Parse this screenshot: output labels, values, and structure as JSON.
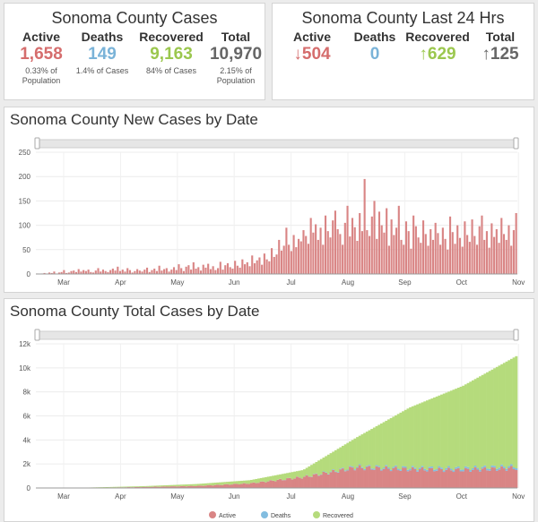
{
  "cases": {
    "title": "Sonoma County Cases",
    "stats": [
      {
        "label": "Active",
        "value": "1,658",
        "note": "0.33% of Population",
        "color": "#d56d6d"
      },
      {
        "label": "Deaths",
        "value": "149",
        "note": "1.4% of Cases",
        "color": "#7ab3d8"
      },
      {
        "label": "Recovered",
        "value": "9,163",
        "note": "84% of Cases",
        "color": "#9bc74e"
      },
      {
        "label": "Total",
        "value": "10,970",
        "note": "2.15% of Population",
        "color": "#666666"
      }
    ]
  },
  "last24": {
    "title": "Sonoma County Last 24 Hrs",
    "stats": [
      {
        "label": "Active",
        "value": "↓504",
        "color": "#d56d6d"
      },
      {
        "label": "Deaths",
        "value": "0",
        "color": "#7ab3d8"
      },
      {
        "label": "Recovered",
        "value": "↑629",
        "color": "#9bc74e"
      },
      {
        "label": "Total",
        "value": "↑125",
        "color": "#666666"
      }
    ]
  },
  "new_chart": {
    "title": "Sonoma County New Cases by Date"
  },
  "total_chart": {
    "title": "Sonoma County Total Cases by Date"
  },
  "chart_data": [
    {
      "type": "bar",
      "title": "Sonoma County New Cases by Date",
      "ylim": [
        0,
        250
      ],
      "yticks": [
        0,
        50,
        100,
        150,
        200,
        250
      ],
      "xticks": [
        "Mar",
        "Apr",
        "May",
        "Jun",
        "Jul",
        "Aug",
        "Sep",
        "Oct",
        "Nov"
      ],
      "series": [
        {
          "name": "New Cases",
          "color": "#d98585",
          "values": [
            1,
            0,
            1,
            2,
            1,
            3,
            2,
            5,
            1,
            3,
            4,
            8,
            2,
            3,
            6,
            7,
            4,
            10,
            5,
            8,
            6,
            9,
            4,
            3,
            7,
            12,
            5,
            9,
            6,
            4,
            8,
            11,
            7,
            15,
            6,
            9,
            5,
            12,
            8,
            3,
            6,
            10,
            7,
            5,
            9,
            13,
            4,
            8,
            11,
            6,
            17,
            7,
            10,
            12,
            5,
            9,
            14,
            8,
            20,
            12,
            6,
            15,
            18,
            9,
            24,
            11,
            14,
            7,
            19,
            13,
            21,
            10,
            16,
            8,
            12,
            25,
            9,
            18,
            22,
            14,
            11,
            27,
            17,
            13,
            30,
            20,
            24,
            16,
            38,
            22,
            28,
            34,
            19,
            42,
            30,
            26,
            53,
            35,
            40,
            70,
            48,
            58,
            95,
            60,
            47,
            80,
            55,
            72,
            67,
            90,
            78,
            62,
            115,
            85,
            102,
            70,
            95,
            60,
            120,
            88,
            75,
            110,
            130,
            92,
            82,
            60,
            105,
            140,
            77,
            115,
            96,
            68,
            125,
            88,
            195,
            90,
            78,
            118,
            150,
            72,
            128,
            100,
            85,
            135,
            58,
            112,
            80,
            95,
            140,
            70,
            60,
            108,
            88,
            52,
            120,
            98,
            75,
            64,
            110,
            82,
            58,
            92,
            70,
            105,
            84,
            60,
            95,
            72,
            50,
            118,
            86,
            62,
            100,
            74,
            56,
            108,
            80,
            66,
            112,
            78,
            60,
            98,
            120,
            70,
            88,
            54,
            104,
            76,
            92,
            64,
            115,
            82,
            70,
            100,
            58,
            90,
            125
          ]
        }
      ]
    },
    {
      "type": "area",
      "title": "Sonoma County Total Cases by Date",
      "ylim": [
        0,
        12000
      ],
      "yticks_labels": [
        "0",
        "2k",
        "4k",
        "6k",
        "8k",
        "10k",
        "12k"
      ],
      "xticks": [
        "Mar",
        "Apr",
        "May",
        "Jun",
        "Jul",
        "Aug",
        "Sep",
        "Oct",
        "Nov"
      ],
      "series": [
        {
          "name": "Active",
          "color": "#d98585"
        },
        {
          "name": "Deaths",
          "color": "#82bde0"
        },
        {
          "name": "Recovered",
          "color": "#b5db7c"
        }
      ],
      "checkpoints_total": [
        0,
        40,
        150,
        330,
        650,
        1500,
        4200,
        6700,
        8500,
        10970
      ],
      "checkpoints_active": [
        0,
        20,
        80,
        170,
        380,
        900,
        1700,
        1550,
        1500,
        1658
      ],
      "checkpoints_deaths": [
        0,
        1,
        2,
        4,
        6,
        15,
        80,
        120,
        140,
        149
      ]
    }
  ]
}
